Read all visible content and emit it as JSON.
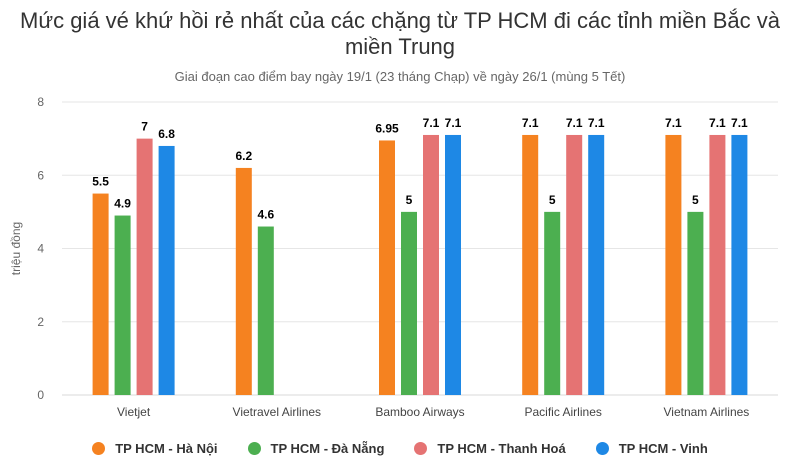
{
  "chart_data": {
    "type": "bar",
    "title": "Mức giá vé khứ hồi rẻ nhất của các chặng từ TP HCM đi các tỉnh miền Bắc và miền Trung",
    "subtitle": "Giai đoạn cao điểm bay ngày 19/1 (23 tháng Chạp) về ngày 26/1 (mùng 5 Tết)",
    "xlabel": "",
    "ylabel": "triệu đồng",
    "ylim": [
      0,
      8
    ],
    "yticks": [
      0,
      2,
      4,
      6,
      8
    ],
    "grid": true,
    "legend_position": "bottom",
    "categories": [
      "Vietjet",
      "Vietravel Airlines",
      "Bamboo Airways",
      "Pacific Airlines",
      "Vietnam Airlines"
    ],
    "series": [
      {
        "name": "TP HCM - Hà Nội",
        "color": "#f58220",
        "values": [
          5.5,
          6.2,
          6.95,
          7.1,
          7.1
        ],
        "labels": [
          "5.5",
          "6.2",
          "6.95",
          "7.1",
          "7.1"
        ]
      },
      {
        "name": "TP HCM - Đà Nẵng",
        "color": "#4caf50",
        "values": [
          4.9,
          4.6,
          5,
          5,
          5
        ],
        "labels": [
          "4.9",
          "4.6",
          "5",
          "5",
          "5"
        ]
      },
      {
        "name": "TP HCM - Thanh Hoá",
        "color": "#e57373",
        "values": [
          7,
          null,
          7.1,
          7.1,
          7.1
        ],
        "labels": [
          "7",
          "",
          "7.1",
          "7.1",
          "7.1"
        ]
      },
      {
        "name": "TP HCM - Vinh",
        "color": "#1e88e5",
        "values": [
          6.8,
          null,
          7.1,
          7.1,
          7.1
        ],
        "labels": [
          "6.8",
          "",
          "7.1",
          "7.1",
          "7.1"
        ]
      }
    ]
  }
}
